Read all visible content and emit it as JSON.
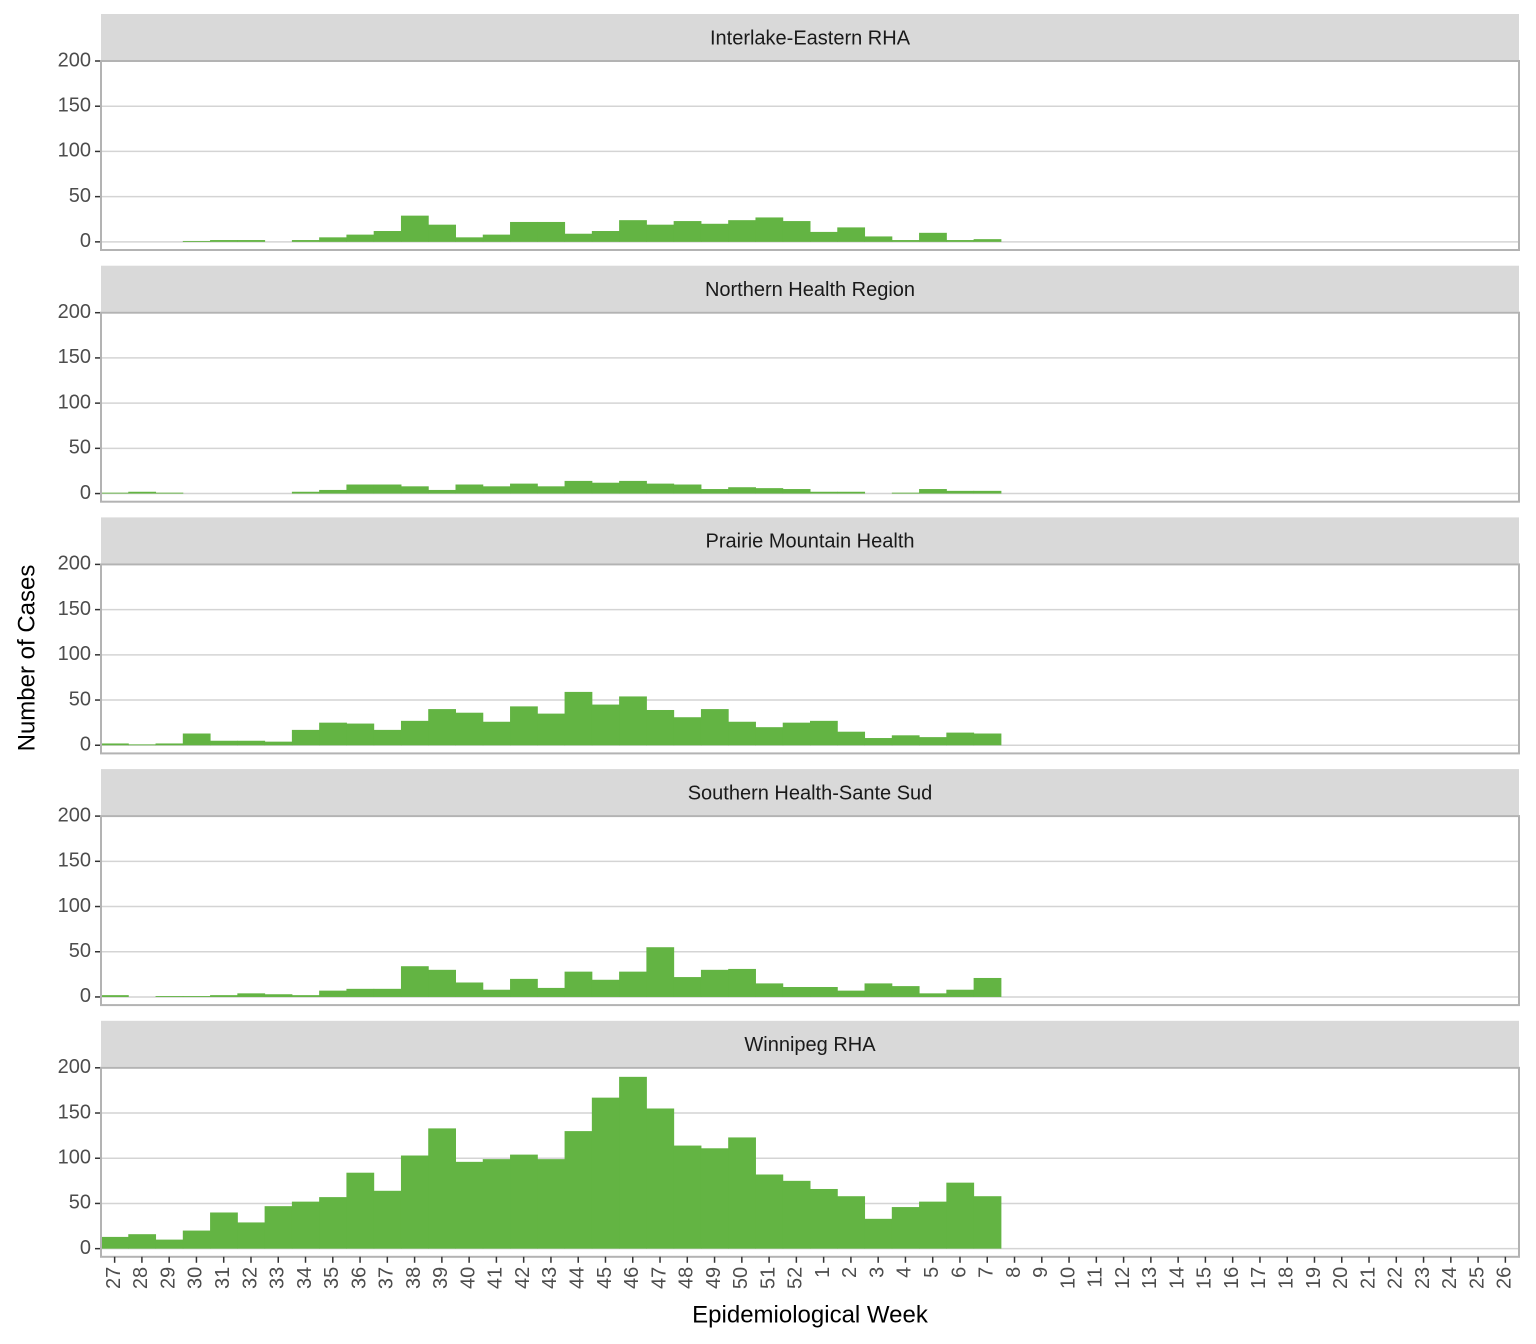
{
  "chart_data": {
    "type": "bar",
    "xlabel": "Epidemiological Week",
    "ylabel": "Number of Cases",
    "color": "#63b443",
    "grid": true,
    "ylim": [
      -9,
      200
    ],
    "yticks": [
      0,
      50,
      100,
      150,
      200
    ],
    "categories": [
      "27",
      "28",
      "29",
      "30",
      "31",
      "32",
      "33",
      "34",
      "35",
      "36",
      "37",
      "38",
      "39",
      "40",
      "41",
      "42",
      "43",
      "44",
      "45",
      "46",
      "47",
      "48",
      "49",
      "50",
      "51",
      "52",
      "1",
      "2",
      "3",
      "4",
      "5",
      "6",
      "7",
      "8",
      "9",
      "10",
      "11",
      "12",
      "13",
      "14",
      "15",
      "16",
      "17",
      "18",
      "19",
      "20",
      "21",
      "22",
      "23",
      "24",
      "25",
      "26"
    ],
    "facets": [
      {
        "title": "Interlake-Eastern RHA",
        "values": [
          0,
          0,
          0,
          1,
          2,
          2,
          0,
          2,
          5,
          8,
          12,
          29,
          19,
          5,
          8,
          22,
          22,
          9,
          12,
          24,
          19,
          23,
          20,
          24,
          27,
          23,
          11,
          16,
          6,
          2,
          10,
          2,
          3,
          null,
          null,
          null,
          null,
          null,
          null,
          null,
          null,
          null,
          null,
          null,
          null,
          null,
          null,
          null,
          null,
          null,
          null,
          null
        ]
      },
      {
        "title": "Northern Health Region",
        "values": [
          1,
          2,
          1,
          0,
          0,
          0,
          0,
          2,
          4,
          10,
          10,
          8,
          4,
          10,
          8,
          11,
          8,
          14,
          12,
          14,
          11,
          10,
          5,
          7,
          6,
          5,
          2,
          2,
          0,
          1,
          5,
          3,
          3,
          null,
          null,
          null,
          null,
          null,
          null,
          null,
          null,
          null,
          null,
          null,
          null,
          null,
          null,
          null,
          null,
          null,
          null,
          null
        ]
      },
      {
        "title": "Prairie Mountain Health",
        "values": [
          2,
          1,
          2,
          13,
          5,
          5,
          4,
          17,
          25,
          24,
          17,
          27,
          40,
          36,
          26,
          43,
          35,
          59,
          45,
          54,
          39,
          31,
          40,
          26,
          20,
          25,
          27,
          15,
          8,
          11,
          9,
          14,
          13,
          null,
          null,
          null,
          null,
          null,
          null,
          null,
          null,
          null,
          null,
          null,
          null,
          null,
          null,
          null,
          null,
          null,
          null,
          null
        ]
      },
      {
        "title": "Southern Health-Sante Sud",
        "values": [
          2,
          0,
          1,
          1,
          2,
          4,
          3,
          2,
          7,
          9,
          9,
          34,
          30,
          16,
          8,
          20,
          10,
          28,
          19,
          28,
          55,
          22,
          30,
          31,
          15,
          11,
          11,
          7,
          15,
          12,
          4,
          8,
          21,
          null,
          null,
          null,
          null,
          null,
          null,
          null,
          null,
          null,
          null,
          null,
          null,
          null,
          null,
          null,
          null,
          null,
          null,
          null
        ]
      },
      {
        "title": "Winnipeg RHA",
        "values": [
          13,
          16,
          10,
          20,
          40,
          29,
          47,
          52,
          57,
          84,
          64,
          103,
          133,
          96,
          99,
          104,
          99,
          130,
          167,
          190,
          155,
          114,
          111,
          123,
          82,
          75,
          66,
          58,
          33,
          46,
          52,
          73,
          58,
          null,
          null,
          null,
          null,
          null,
          null,
          null,
          null,
          null,
          null,
          null,
          null,
          null,
          null,
          null,
          null,
          null,
          null,
          null
        ]
      }
    ]
  }
}
